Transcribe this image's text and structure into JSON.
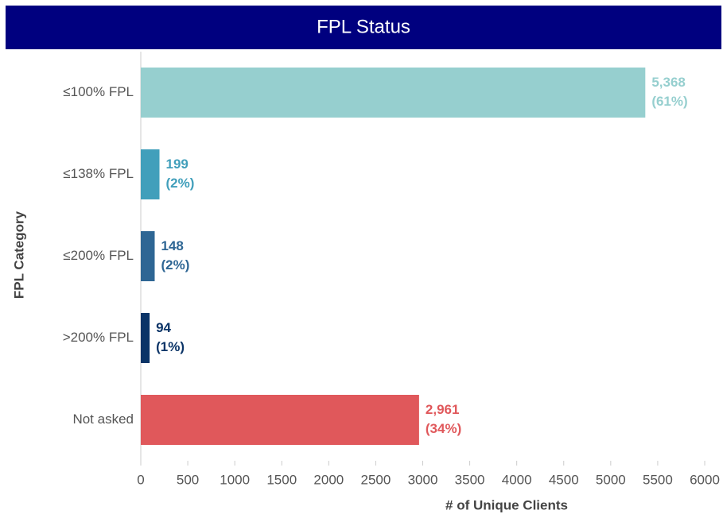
{
  "chart_data": {
    "type": "hbar",
    "title": "FPL Status",
    "categories": [
      "≤100% FPL",
      "≤138% FPL",
      "≤200% FPL",
      ">200% FPL",
      "Not asked"
    ],
    "values": [
      5368,
      199,
      148,
      94,
      2961
    ],
    "value_labels": [
      "5,368",
      "199",
      "148",
      "94",
      "2,961"
    ],
    "percents": [
      61,
      2,
      2,
      1,
      34
    ],
    "percent_labels": [
      "(61%)",
      "(2%)",
      "(2%)",
      "(1%)",
      "(34%)"
    ],
    "colors": [
      "#96cfcf",
      "#419fbb",
      "#2e6694",
      "#0b3467",
      "#e0585b"
    ],
    "xlim": [
      0,
      6000
    ],
    "xticks": [
      0,
      500,
      1000,
      1500,
      2000,
      2500,
      3000,
      3500,
      4000,
      4500,
      5000,
      5500,
      6000
    ],
    "xlabel": "# of Unique Clients",
    "ylabel": "FPL Category",
    "grid": false
  }
}
